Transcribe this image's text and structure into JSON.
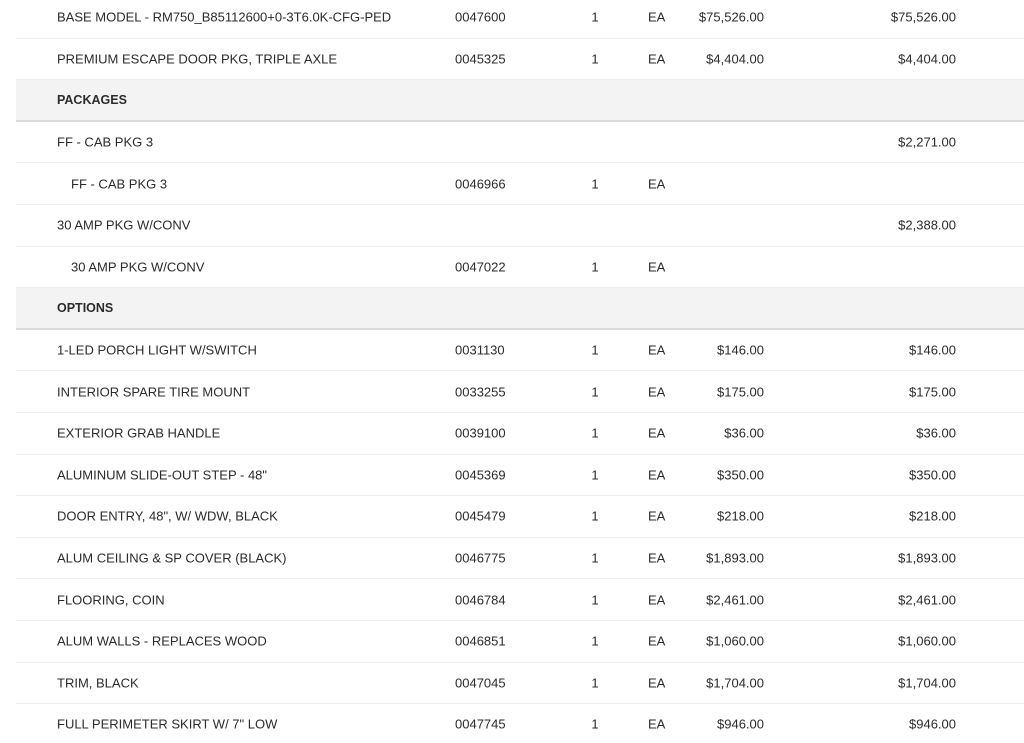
{
  "rows": [
    {
      "type": "item",
      "description": "BASE MODEL - RM750_B85112600+0-3T6.0K-CFG-PED",
      "part": "0047600",
      "qty": "1",
      "unit": "EA",
      "price": "$75,526.00",
      "total": "$75,526.00"
    },
    {
      "type": "item",
      "description": "PREMIUM ESCAPE DOOR PKG, TRIPLE AXLE",
      "part": "0045325",
      "qty": "1",
      "unit": "EA",
      "price": "$4,404.00",
      "total": "$4,404.00"
    },
    {
      "type": "section",
      "description": "PACKAGES"
    },
    {
      "type": "item",
      "description": "FF - CAB PKG 3",
      "part": "",
      "qty": "",
      "unit": "",
      "price": "",
      "total": "$2,271.00"
    },
    {
      "type": "sub",
      "description": "FF - CAB PKG 3",
      "part": "0046966",
      "qty": "1",
      "unit": "EA",
      "price": "",
      "total": ""
    },
    {
      "type": "item",
      "description": "30 AMP PKG W/CONV",
      "part": "",
      "qty": "",
      "unit": "",
      "price": "",
      "total": "$2,388.00"
    },
    {
      "type": "sub",
      "description": "30 AMP PKG W/CONV",
      "part": "0047022",
      "qty": "1",
      "unit": "EA",
      "price": "",
      "total": ""
    },
    {
      "type": "section",
      "description": "OPTIONS"
    },
    {
      "type": "item",
      "description": "1-LED PORCH LIGHT W/SWITCH",
      "part": "0031130",
      "qty": "1",
      "unit": "EA",
      "price": "$146.00",
      "total": "$146.00"
    },
    {
      "type": "item",
      "description": "INTERIOR SPARE TIRE MOUNT",
      "part": "0033255",
      "qty": "1",
      "unit": "EA",
      "price": "$175.00",
      "total": "$175.00"
    },
    {
      "type": "item",
      "description": "EXTERIOR GRAB HANDLE",
      "part": "0039100",
      "qty": "1",
      "unit": "EA",
      "price": "$36.00",
      "total": "$36.00"
    },
    {
      "type": "item",
      "description": "ALUMINUM SLIDE-OUT STEP - 48\"",
      "part": "0045369",
      "qty": "1",
      "unit": "EA",
      "price": "$350.00",
      "total": "$350.00"
    },
    {
      "type": "item",
      "description": "DOOR ENTRY, 48\", W/ WDW, BLACK",
      "part": "0045479",
      "qty": "1",
      "unit": "EA",
      "price": "$218.00",
      "total": "$218.00"
    },
    {
      "type": "item",
      "description": "ALUM CEILING & SP COVER (BLACK)",
      "part": "0046775",
      "qty": "1",
      "unit": "EA",
      "price": "$1,893.00",
      "total": "$1,893.00"
    },
    {
      "type": "item",
      "description": "FLOORING, COIN",
      "part": "0046784",
      "qty": "1",
      "unit": "EA",
      "price": "$2,461.00",
      "total": "$2,461.00"
    },
    {
      "type": "item",
      "description": "ALUM WALLS - REPLACES WOOD",
      "part": "0046851",
      "qty": "1",
      "unit": "EA",
      "price": "$1,060.00",
      "total": "$1,060.00"
    },
    {
      "type": "item",
      "description": "TRIM, BLACK",
      "part": "0047045",
      "qty": "1",
      "unit": "EA",
      "price": "$1,704.00",
      "total": "$1,704.00"
    },
    {
      "type": "item",
      "description": "FULL PERIMETER SKIRT W/ 7\" LOW",
      "part": "0047745",
      "qty": "1",
      "unit": "EA",
      "price": "$946.00",
      "total": "$946.00"
    }
  ]
}
